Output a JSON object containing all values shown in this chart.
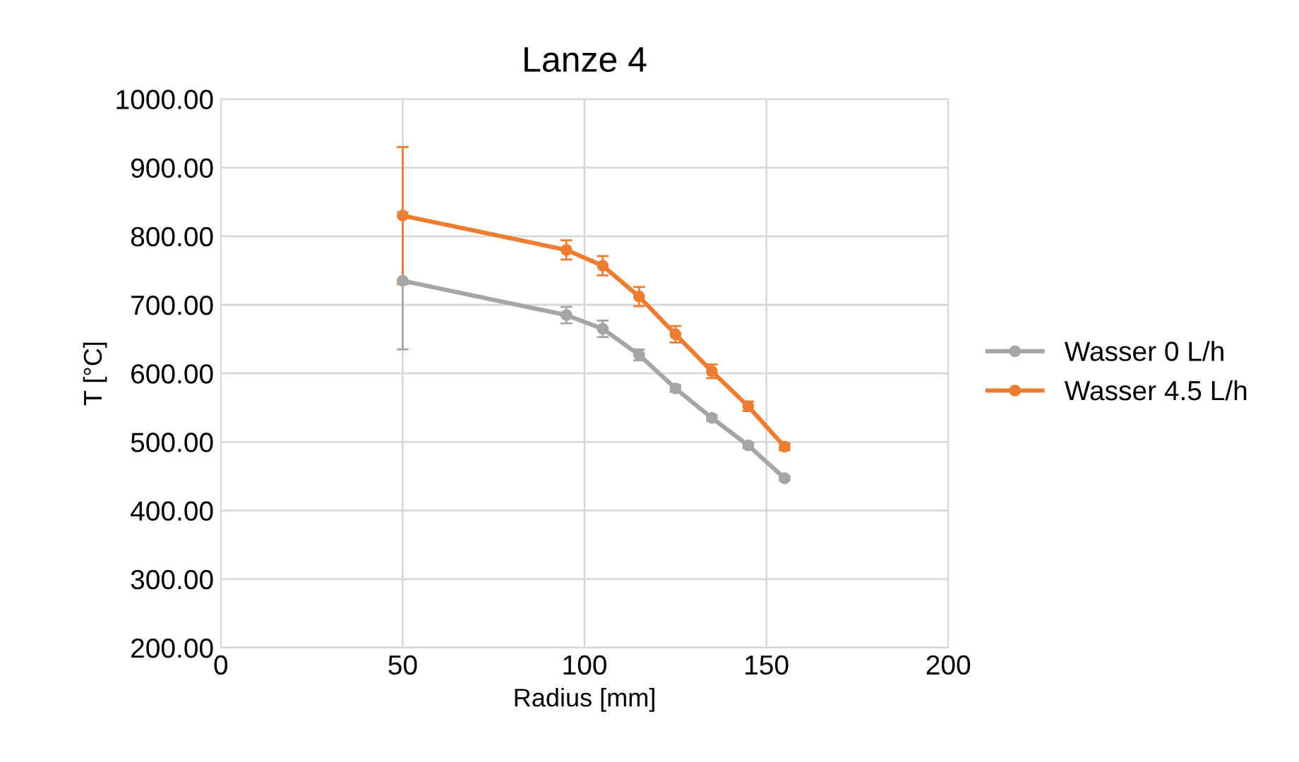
{
  "chart_data": {
    "type": "line",
    "title": "Lanze 4",
    "xlabel": "Radius [mm]",
    "ylabel": "T [°C]",
    "x": [
      50,
      95,
      105,
      115,
      125,
      135,
      145,
      155
    ],
    "series": [
      {
        "name": "Wasser 0 L/h",
        "color": "#a5a5a5",
        "values": [
          735,
          685,
          665,
          627,
          578,
          535,
          495,
          447
        ],
        "errors": [
          100,
          12,
          12,
          8,
          5,
          4,
          4,
          3
        ]
      },
      {
        "name": "Wasser 4.5 L/h",
        "color": "#ed7d31",
        "values": [
          830,
          780,
          757,
          712,
          657,
          603,
          552,
          493
        ],
        "errors": [
          100,
          14,
          14,
          14,
          12,
          10,
          7,
          5
        ]
      }
    ],
    "xlim": [
      0,
      200
    ],
    "xticks": [
      0,
      50,
      100,
      150,
      200
    ],
    "ylim": [
      200,
      1000
    ],
    "yticks": [
      {
        "value": 200,
        "label": "200.00"
      },
      {
        "value": 300,
        "label": "300.00"
      },
      {
        "value": 400,
        "label": "400.00"
      },
      {
        "value": 500,
        "label": "500.00"
      },
      {
        "value": 600,
        "label": "600.00"
      },
      {
        "value": 700,
        "label": "700.00"
      },
      {
        "value": 800,
        "label": "800.00"
      },
      {
        "value": 900,
        "label": "900.00"
      },
      {
        "value": 1000,
        "label": "1000.00"
      }
    ],
    "grid": true,
    "legend": "right",
    "marker": "circle",
    "line_style": "solid"
  }
}
